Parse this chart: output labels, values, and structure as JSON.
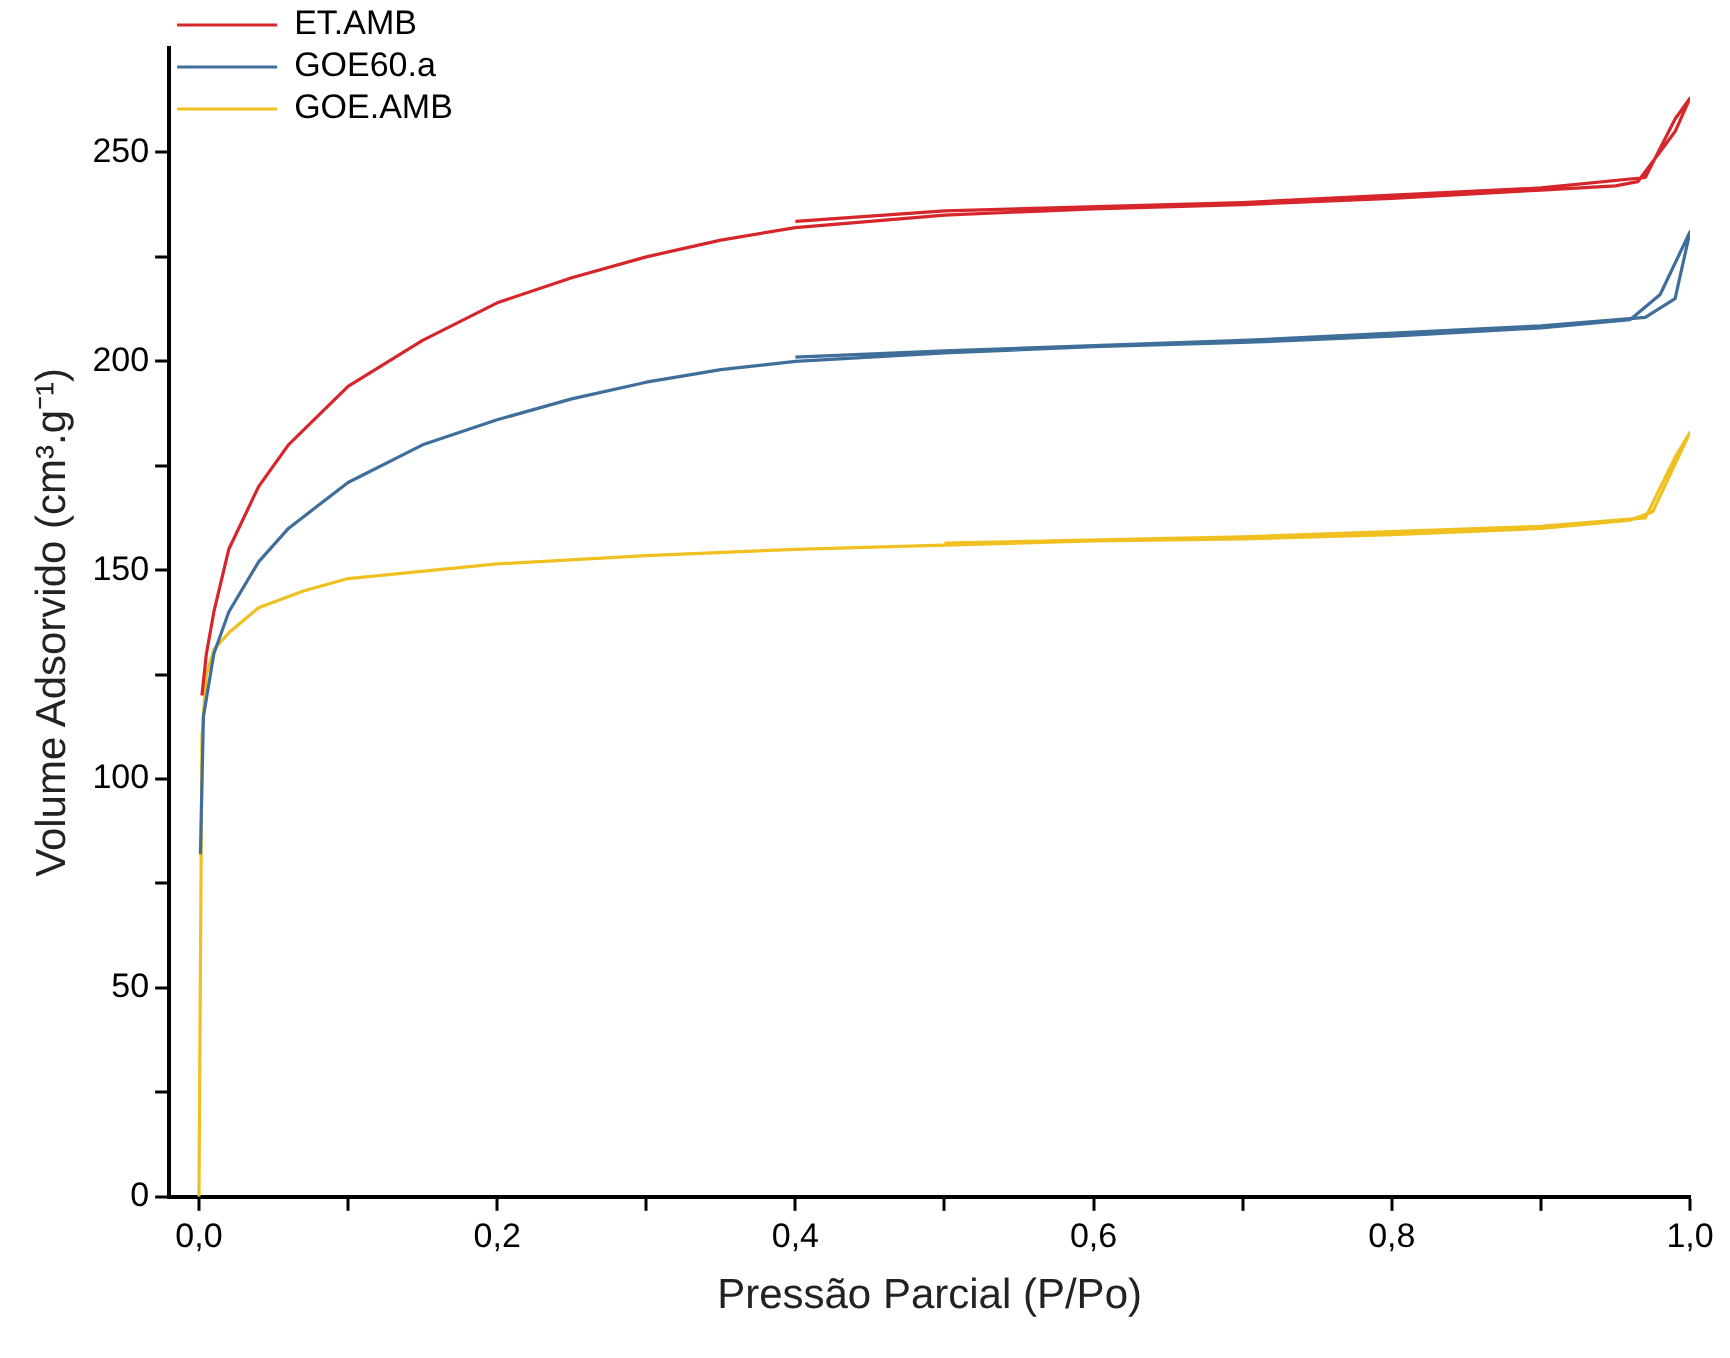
{
  "chart_data": {
    "type": "line",
    "xlabel": "Pressão Parcial (P/Po)",
    "ylabel": "Volume Adsorvido (cm³.g⁻¹)",
    "xlim": [
      -0.02,
      1.0
    ],
    "ylim": [
      0,
      275
    ],
    "xticks": [
      {
        "value": 0,
        "label": "0,0"
      },
      {
        "value": 0.1,
        "label": null
      },
      {
        "value": 0.2,
        "label": "0,2"
      },
      {
        "value": 0.3,
        "label": null
      },
      {
        "value": 0.4,
        "label": "0,4"
      },
      {
        "value": 0.5,
        "label": null
      },
      {
        "value": 0.6,
        "label": "0,6"
      },
      {
        "value": 0.7,
        "label": null
      },
      {
        "value": 0.8,
        "label": "0,8"
      },
      {
        "value": 0.9,
        "label": null
      },
      {
        "value": 1.0,
        "label": "1,0"
      }
    ],
    "yticks": [
      0,
      {
        "value": 25,
        "label": null
      },
      50,
      {
        "value": 75,
        "label": null
      },
      100,
      {
        "value": 125,
        "label": null
      },
      150,
      {
        "value": 175,
        "label": null
      },
      200,
      {
        "value": 225,
        "label": null
      },
      250
    ],
    "grid": false,
    "legend": "top left",
    "marker": "none",
    "line_style": "solid",
    "series": [
      {
        "name": "ET.AMB",
        "color": "#d7262b",
        "x": [
          0.002,
          0.005,
          0.01,
          0.02,
          0.04,
          0.06,
          0.1,
          0.15,
          0.2,
          0.25,
          0.3,
          0.35,
          0.4,
          0.5,
          0.6,
          0.7,
          0.8,
          0.9,
          0.95,
          0.965,
          0.99,
          1.0,
          0.99,
          0.97,
          0.9,
          0.7,
          0.5,
          0.4
        ],
        "values": [
          120,
          130,
          140,
          155,
          170,
          180,
          194,
          205,
          214,
          220,
          225,
          229,
          232,
          235,
          236.5,
          237.5,
          239,
          241,
          242,
          243,
          255,
          263,
          258,
          244,
          241.5,
          238,
          236,
          233.5
        ]
      },
      {
        "name": "GOE60.a",
        "color": "#3f6e9a",
        "x": [
          0.001,
          0.003,
          0.01,
          0.02,
          0.04,
          0.06,
          0.1,
          0.15,
          0.2,
          0.25,
          0.3,
          0.35,
          0.4,
          0.5,
          0.6,
          0.7,
          0.8,
          0.9,
          0.96,
          0.98,
          1.0,
          0.99,
          0.97,
          0.9,
          0.7,
          0.5,
          0.4
        ],
        "values": [
          82,
          115,
          130,
          140,
          152,
          160,
          171,
          180,
          186,
          191,
          195,
          198,
          200,
          202,
          203.5,
          204.5,
          206,
          208,
          210,
          216,
          231,
          215,
          210.5,
          208.5,
          205,
          202.5,
          201
        ]
      },
      {
        "name": "GOE.AMB",
        "color": "#f0c020",
        "x": [
          0,
          0.002,
          0.005,
          0.01,
          0.02,
          0.04,
          0.07,
          0.1,
          0.2,
          0.3,
          0.4,
          0.5,
          0.6,
          0.7,
          0.8,
          0.9,
          0.96,
          0.975,
          1.0,
          0.99,
          0.97,
          0.9,
          0.7,
          0.5
        ],
        "values": [
          0,
          110,
          125,
          131,
          135,
          141,
          145,
          148,
          151.5,
          153.5,
          155,
          156,
          157,
          157.5,
          158.5,
          160,
          162,
          164,
          183,
          177,
          162.5,
          160.5,
          158,
          156.5
        ]
      }
    ]
  }
}
